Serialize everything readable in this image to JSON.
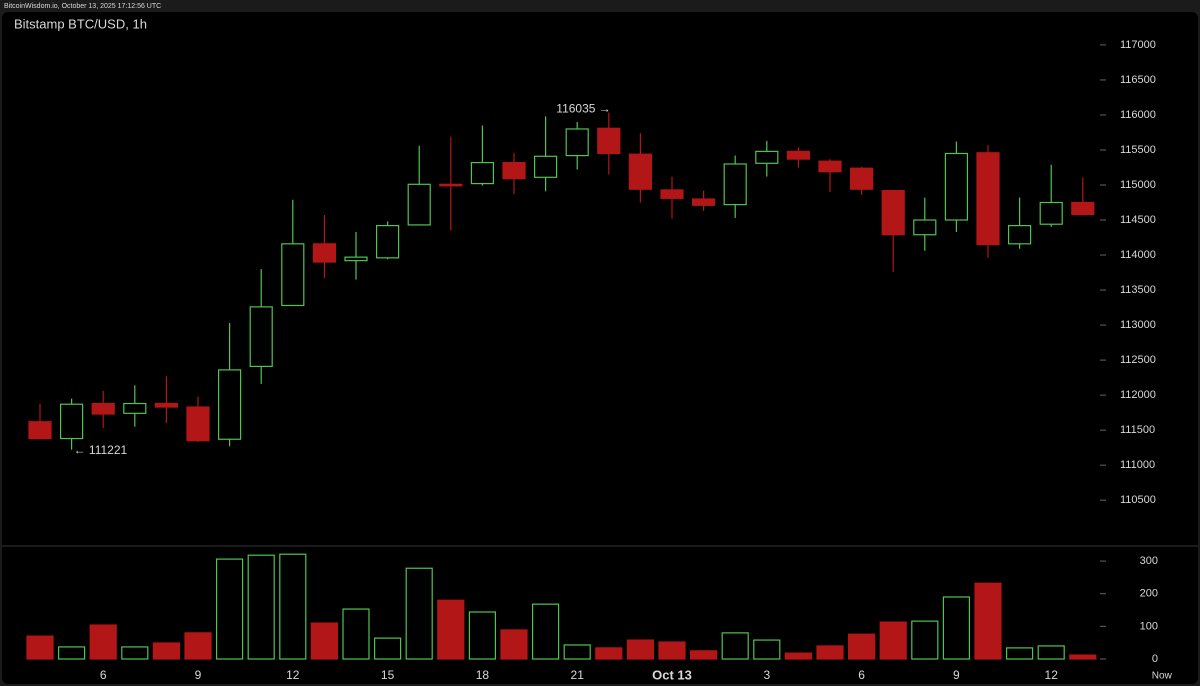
{
  "header": "BitcoinWisdom.io, October 13, 2025 17:12:56 UTC",
  "chart_data": {
    "type": "candlestick",
    "title": "Bitstamp BTC/USD, 1h",
    "categories": [
      null,
      null,
      "6",
      null,
      null,
      "9",
      null,
      null,
      "12",
      null,
      null,
      "15",
      null,
      null,
      "18",
      null,
      null,
      "21",
      null,
      null,
      "Oct 13",
      null,
      null,
      "3",
      null,
      null,
      "6",
      null,
      null,
      "9",
      null,
      null,
      "12",
      null
    ],
    "now_label": "Now",
    "open": [
      111620,
      111380,
      111880,
      111740,
      111880,
      111830,
      111370,
      112410,
      113280,
      114160,
      113920,
      113960,
      114430,
      115010,
      115020,
      115320,
      115110,
      115420,
      115810,
      115440,
      114930,
      114800,
      114720,
      115310,
      115480,
      115340,
      115240,
      114920,
      114290,
      114500,
      115460,
      114160,
      114440,
      114750
    ],
    "high": [
      111880,
      111950,
      112060,
      112140,
      112270,
      111980,
      113030,
      113800,
      114790,
      114570,
      114330,
      114480,
      115560,
      115690,
      115850,
      115460,
      115980,
      115900,
      116035,
      115740,
      115120,
      114920,
      115420,
      115630,
      115540,
      115370,
      115260,
      114920,
      114820,
      115620,
      115570,
      114820,
      115290,
      115110
    ],
    "low": [
      111380,
      111221,
      111530,
      111550,
      111600,
      111330,
      111270,
      112160,
      113290,
      113670,
      113650,
      113940,
      114430,
      114350,
      114990,
      114870,
      114910,
      115220,
      115150,
      114750,
      114520,
      114630,
      114530,
      115120,
      115250,
      114900,
      114860,
      113760,
      114060,
      114330,
      113960,
      114090,
      114400,
      114580
    ],
    "close": [
      111380,
      111870,
      111730,
      111880,
      111830,
      111350,
      112360,
      113260,
      114160,
      113900,
      113970,
      114420,
      115010,
      114990,
      115320,
      115090,
      115410,
      115800,
      115450,
      114940,
      114810,
      114710,
      115300,
      115480,
      115370,
      115190,
      114940,
      114290,
      114500,
      115450,
      114150,
      114420,
      114750,
      114580
    ],
    "volume": [
      70,
      37,
      104,
      37,
      49,
      80,
      306,
      318,
      321,
      110,
      153,
      64,
      278,
      180,
      144,
      89,
      168,
      43,
      34,
      58,
      52,
      25,
      80,
      58,
      18,
      40,
      76,
      113,
      116,
      190,
      232,
      34,
      40,
      12
    ],
    "up_color": "#4fc44f",
    "down_color": "#b31616",
    "annotations": {
      "high": "116035 →",
      "low": "← 111221"
    },
    "ylim": [
      109860,
      117470
    ],
    "yticks": [
      110500,
      111000,
      111500,
      112000,
      112500,
      113000,
      113500,
      114000,
      114500,
      115000,
      115500,
      116000,
      116500,
      117000
    ],
    "volume_ylim": [
      0,
      340
    ],
    "volume_yticks": [
      0,
      100,
      200,
      300
    ]
  }
}
